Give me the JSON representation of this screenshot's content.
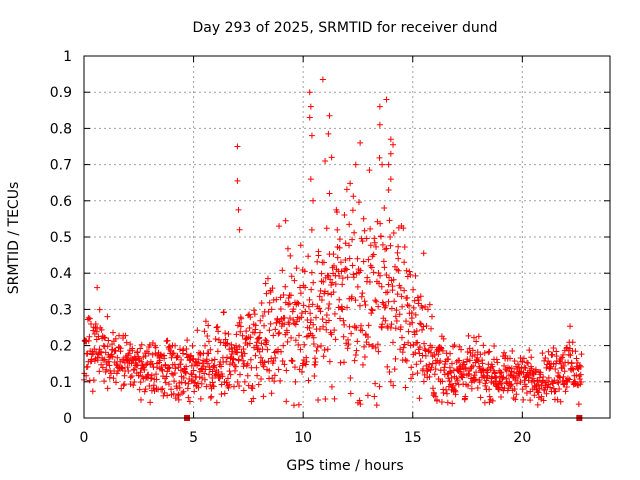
{
  "chart_data": {
    "type": "scatter",
    "title": "Day 293 of 2025, SRMTID for receiver dund",
    "xlabel": "GPS time / hours",
    "ylabel": "SRMTID / TECUs",
    "xlim": [
      0,
      24
    ],
    "ylim": [
      0,
      1
    ],
    "xticks": [
      0,
      5,
      10,
      15,
      20
    ],
    "xtick_labels": [
      "0",
      "5",
      "10",
      "15",
      "20"
    ],
    "yticks": [
      0,
      0.1,
      0.2,
      0.3,
      0.4,
      0.5,
      0.6,
      0.7,
      0.8,
      0.9,
      1
    ],
    "ytick_labels": [
      "0",
      "0.1",
      "0.2",
      "0.3",
      "0.4",
      "0.5",
      "0.6",
      "0.7",
      "0.8",
      "0.9",
      "1"
    ],
    "grid": true,
    "marker": "+",
    "series_color": "#ff0000",
    "gap_markers": [
      {
        "x": 4.7,
        "y": 0
      },
      {
        "x": 22.6,
        "y": 0
      }
    ],
    "envelope": {
      "x": [
        0.0,
        0.5,
        1.0,
        2.0,
        3.0,
        4.0,
        5.0,
        6.0,
        7.0,
        8.0,
        9.0,
        10.0,
        11.0,
        12.0,
        13.0,
        14.0,
        15.0,
        16.0,
        17.0,
        18.0,
        19.0,
        20.0,
        21.0,
        22.0,
        22.7
      ],
      "center": [
        0.17,
        0.2,
        0.19,
        0.15,
        0.13,
        0.14,
        0.14,
        0.15,
        0.18,
        0.21,
        0.25,
        0.28,
        0.3,
        0.32,
        0.33,
        0.34,
        0.26,
        0.14,
        0.13,
        0.13,
        0.12,
        0.12,
        0.11,
        0.15,
        0.11
      ],
      "spread": [
        0.05,
        0.06,
        0.05,
        0.04,
        0.04,
        0.04,
        0.04,
        0.05,
        0.06,
        0.07,
        0.09,
        0.11,
        0.12,
        0.13,
        0.14,
        0.14,
        0.1,
        0.05,
        0.04,
        0.04,
        0.03,
        0.03,
        0.03,
        0.05,
        0.03
      ]
    },
    "notable_points": [
      {
        "x": 7.0,
        "y": 0.75
      },
      {
        "x": 7.0,
        "y": 0.655
      },
      {
        "x": 7.05,
        "y": 0.575
      },
      {
        "x": 7.1,
        "y": 0.52
      },
      {
        "x": 10.3,
        "y": 0.9
      },
      {
        "x": 10.35,
        "y": 0.86
      },
      {
        "x": 10.3,
        "y": 0.83
      },
      {
        "x": 10.4,
        "y": 0.78
      },
      {
        "x": 10.35,
        "y": 0.66
      },
      {
        "x": 10.45,
        "y": 0.6
      },
      {
        "x": 10.9,
        "y": 0.935
      },
      {
        "x": 11.2,
        "y": 0.835
      },
      {
        "x": 11.15,
        "y": 0.785
      },
      {
        "x": 11.0,
        "y": 0.71
      },
      {
        "x": 11.3,
        "y": 0.72
      },
      {
        "x": 11.2,
        "y": 0.62
      },
      {
        "x": 12.6,
        "y": 0.76
      },
      {
        "x": 13.5,
        "y": 0.86
      },
      {
        "x": 13.5,
        "y": 0.81
      },
      {
        "x": 13.8,
        "y": 0.88
      },
      {
        "x": 14.0,
        "y": 0.77
      },
      {
        "x": 14.1,
        "y": 0.755
      },
      {
        "x": 14.0,
        "y": 0.73
      },
      {
        "x": 13.9,
        "y": 0.7
      },
      {
        "x": 13.6,
        "y": 0.7
      },
      {
        "x": 12.4,
        "y": 0.7
      },
      {
        "x": 14.0,
        "y": 0.66
      },
      {
        "x": 13.9,
        "y": 0.63
      },
      {
        "x": 13.7,
        "y": 0.58
      },
      {
        "x": 15.5,
        "y": 0.455
      },
      {
        "x": 9.2,
        "y": 0.545
      },
      {
        "x": 8.9,
        "y": 0.53
      },
      {
        "x": 12.1,
        "y": 0.535
      },
      {
        "x": 2.6,
        "y": 0.05
      },
      {
        "x": 16.8,
        "y": 0.04
      },
      {
        "x": 0.6,
        "y": 0.36
      }
    ]
  }
}
